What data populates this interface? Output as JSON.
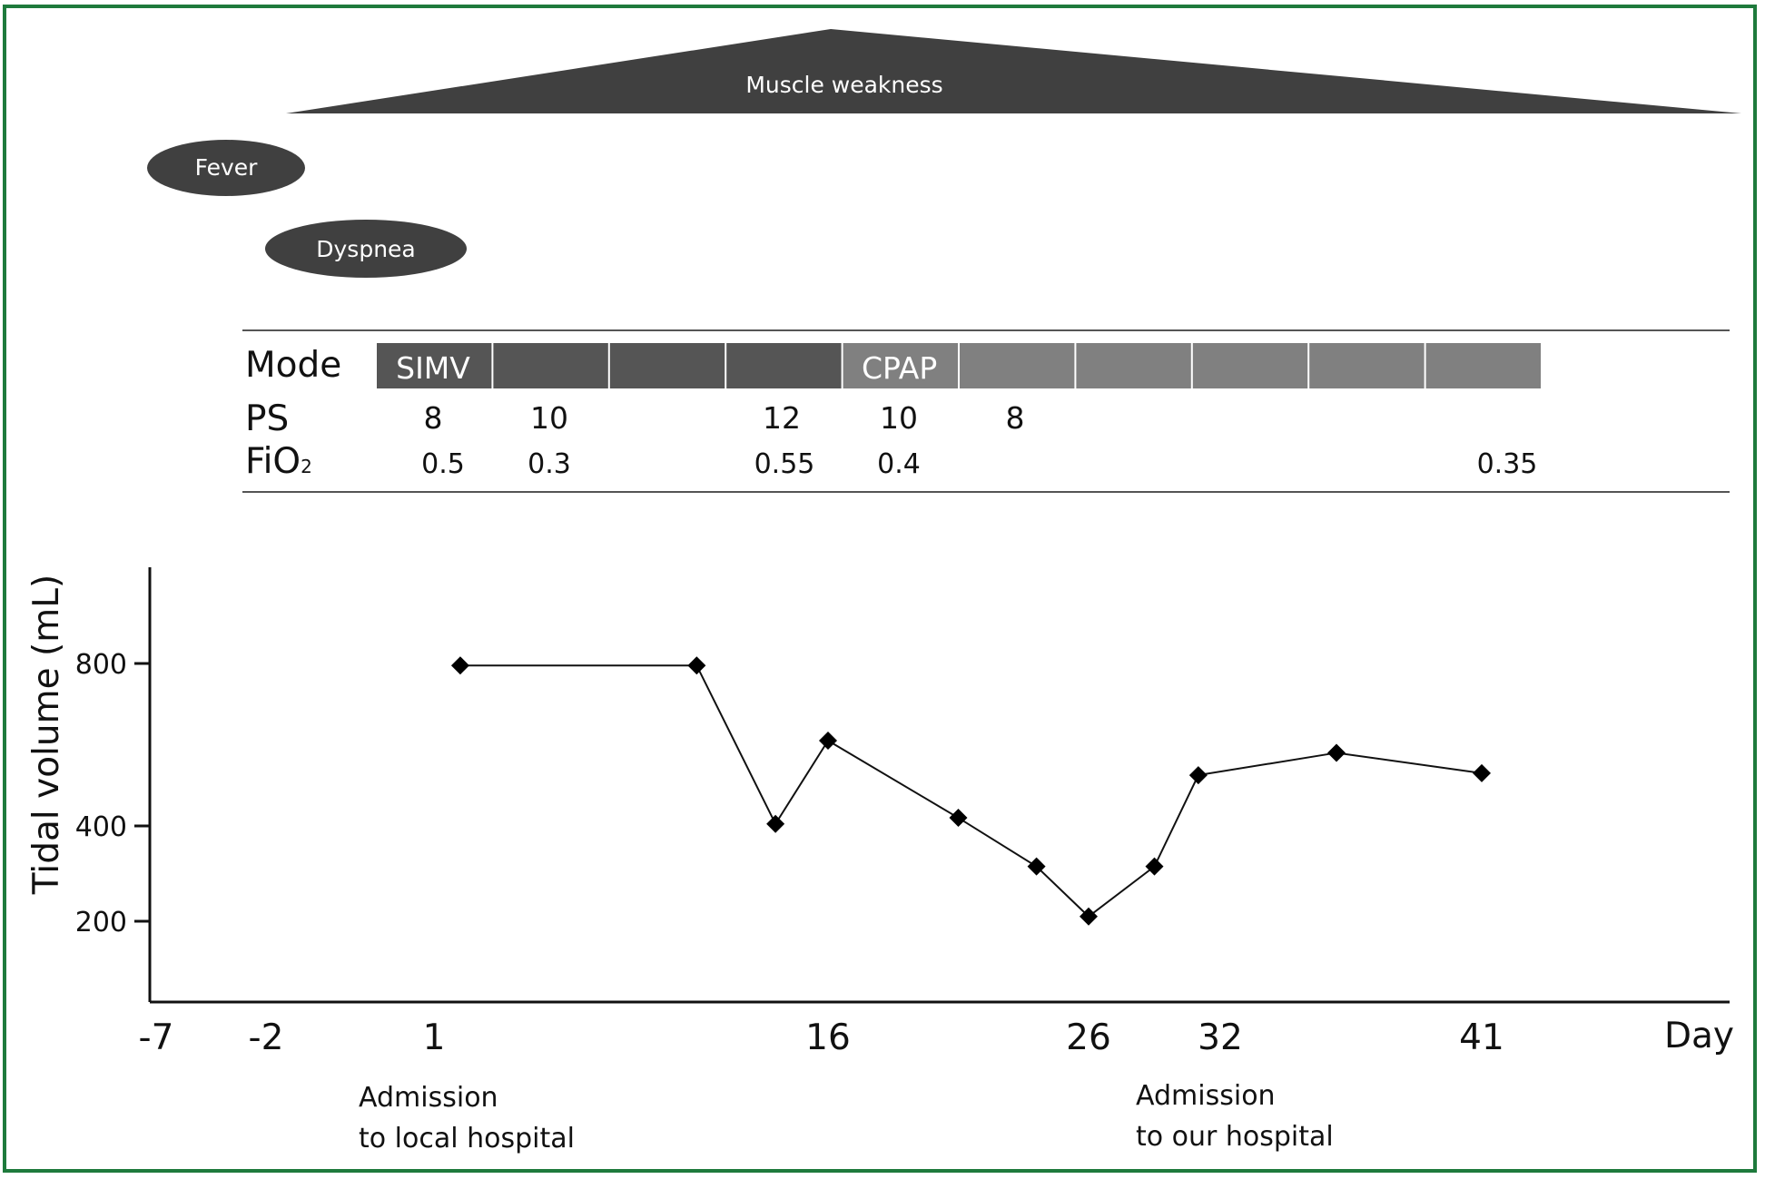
{
  "colors": {
    "frame": "#1e7a3c",
    "shape_fill": "#404040",
    "simv_fill": "#555555",
    "cpap_fill": "#808080",
    "text": "#111111",
    "shape_text": "#ffffff"
  },
  "symptoms": {
    "muscle_weakness": "Muscle weakness",
    "fever": "Fever",
    "dyspnea": "Dyspnea"
  },
  "ventilator": {
    "row_labels": {
      "mode": "Mode",
      "ps": "PS",
      "fio2_main": "FiO",
      "fio2_sub": "2"
    },
    "mode_segments": [
      {
        "label": "SIMV",
        "mode": "SIMV"
      },
      {
        "label": "",
        "mode": "SIMV"
      },
      {
        "label": "",
        "mode": "SIMV"
      },
      {
        "label": "",
        "mode": "SIMV"
      },
      {
        "label": "CPAP",
        "mode": "CPAP"
      },
      {
        "label": "",
        "mode": "CPAP"
      },
      {
        "label": "",
        "mode": "CPAP"
      },
      {
        "label": "",
        "mode": "CPAP"
      },
      {
        "label": "",
        "mode": "CPAP"
      },
      {
        "label": "",
        "mode": "CPAP"
      }
    ],
    "ps_values": [
      "8",
      "10",
      "12",
      "10",
      "8"
    ],
    "fio2_values": [
      "0.5",
      "0.3",
      "0.55",
      "0.4",
      "0.35"
    ]
  },
  "chart_data": {
    "type": "line",
    "xlabel": "Day",
    "ylabel": "Tidal volume (mL)",
    "x_ticks": [
      "-7",
      "-2",
      "1",
      "16",
      "26",
      "32",
      "41"
    ],
    "y_ticks": [
      "800",
      "400",
      "200"
    ],
    "series": [
      {
        "x": [
          2,
          11,
          14,
          16,
          21,
          24,
          26,
          29,
          31,
          36,
          41
        ],
        "y": [
          795,
          795,
          405,
          610,
          420,
          315,
          210,
          315,
          525,
          580,
          530
        ]
      }
    ],
    "annotations": [
      {
        "lines": [
          "Admission",
          "to local hospital"
        ]
      },
      {
        "lines": [
          "Admission",
          "to our hospital"
        ]
      }
    ]
  }
}
